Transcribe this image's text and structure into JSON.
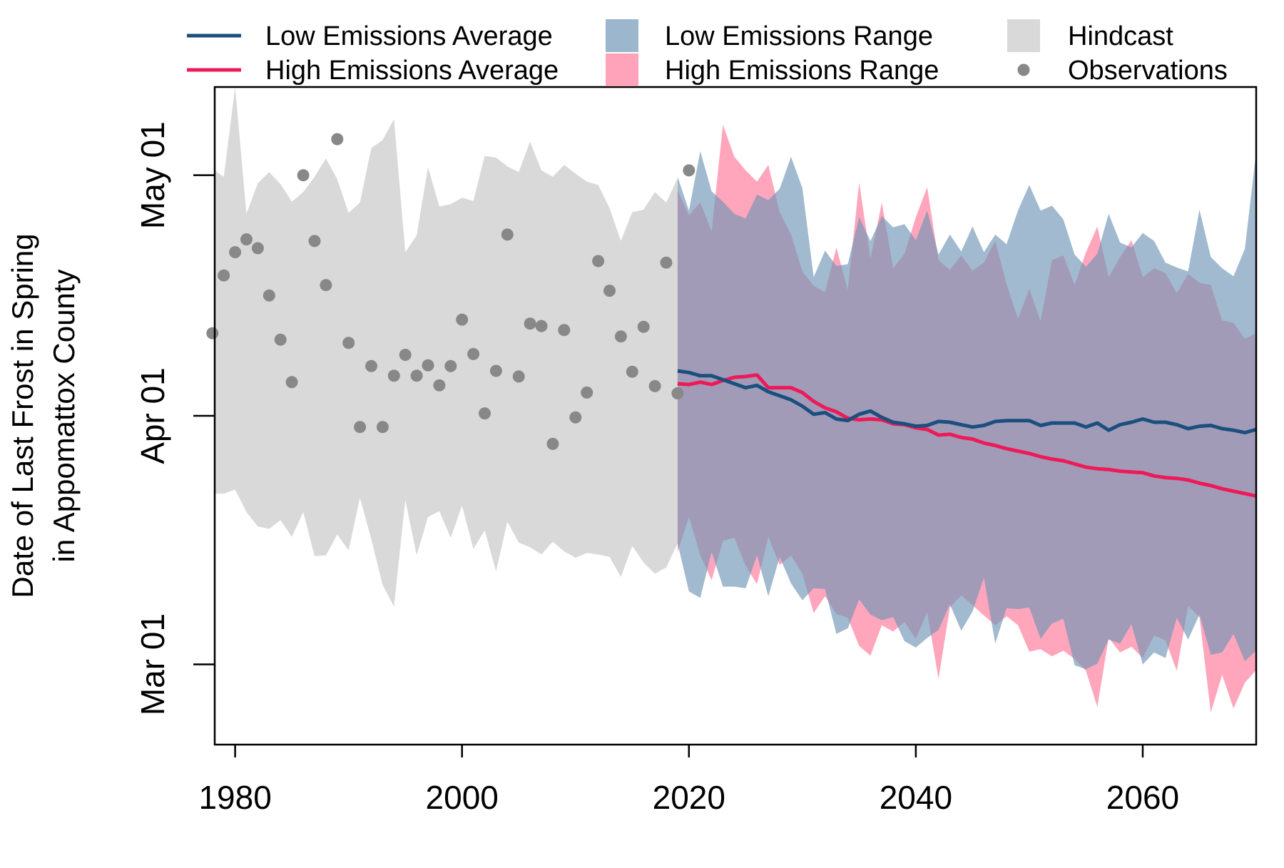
{
  "chart_data": {
    "type": "line",
    "title": "",
    "ylabel_lines": [
      "Date of Last Frost in Spring",
      "in Appomattox County"
    ],
    "xlabel": "",
    "x_ticks": [
      1980,
      2000,
      2020,
      2040,
      2060
    ],
    "xlim": [
      1978.2,
      2070
    ],
    "y_ticks": [
      {
        "doy": 60,
        "label": "Mar 01"
      },
      {
        "doy": 91,
        "label": "Apr 01"
      },
      {
        "doy": 121,
        "label": "May 01"
      }
    ],
    "ylim_doy": [
      50,
      132
    ],
    "grid": false,
    "legend_position": "top",
    "colors": {
      "low_line": "#1a4f7e",
      "high_line": "#ee1a58",
      "low_fill": "#6e95b6",
      "high_fill": "#ff7799",
      "hindcast_fill": "#d9d9d9",
      "observation": "#888888"
    },
    "legend": [
      {
        "label": "Low Emissions Average",
        "kind": "line",
        "color": "#1a4f7e"
      },
      {
        "label": "High Emissions Average",
        "kind": "line",
        "color": "#ee1a58"
      },
      {
        "label": "Low Emissions Range",
        "kind": "box",
        "color": "#9cb6cd"
      },
      {
        "label": "High Emissions Range",
        "kind": "box",
        "color": "#ffa3ba"
      },
      {
        "label": "Hindcast",
        "kind": "box",
        "color": "#d9d9d9"
      },
      {
        "label": "Observations",
        "kind": "point",
        "color": "#888888"
      }
    ],
    "series": [
      {
        "name": "Hindcast",
        "type": "range",
        "x": [
          1978,
          1979,
          1980,
          1981,
          1982,
          1983,
          1984,
          1985,
          1986,
          1987,
          1988,
          1989,
          1990,
          1991,
          1992,
          1993,
          1994,
          1995,
          1996,
          1997,
          1998,
          1999,
          2000,
          2001,
          2002,
          2003,
          2004,
          2005,
          2006,
          2007,
          2008,
          2009,
          2010,
          2011,
          2012,
          2013,
          2014,
          2015,
          2016,
          2017,
          2018,
          2019
        ],
        "low": [
          81.3,
          81.3,
          81.8,
          79,
          77.2,
          76.9,
          78,
          75.9,
          79,
          73.5,
          73.6,
          76.2,
          74.2,
          80.8,
          75.6,
          69.9,
          67.2,
          80.5,
          73.6,
          78.4,
          79.1,
          75.8,
          79.8,
          74.4,
          76.7,
          71.6,
          77.8,
          75.2,
          74.6,
          73.7,
          75.3,
          74.1,
          73.3,
          73.9,
          73.7,
          73.4,
          70.9,
          74.8,
          72.7,
          71.3,
          72.1,
          75.1
        ],
        "high": [
          121.8,
          120.8,
          132.0,
          116.2,
          120.0,
          121.4,
          119.9,
          117.7,
          118.9,
          120.8,
          123.1,
          120.5,
          116.3,
          117.6,
          124.4,
          125.4,
          128.0,
          111.4,
          113.5,
          122.0,
          117.1,
          117.4,
          118.2,
          117.8,
          123.4,
          123.2,
          122.1,
          121.4,
          125.2,
          121.6,
          120.8,
          122.3,
          121.2,
          120.2,
          119.8,
          116.9,
          112.8,
          116.4,
          116.7,
          118.9,
          117.6,
          120.6
        ]
      },
      {
        "name": "Low Emissions Range",
        "type": "range",
        "x": [
          2019,
          2020,
          2021,
          2022,
          2023,
          2024,
          2025,
          2026,
          2027,
          2028,
          2029,
          2030,
          2031,
          2032,
          2033,
          2034,
          2035,
          2036,
          2037,
          2038,
          2039,
          2040,
          2041,
          2042,
          2043,
          2044,
          2045,
          2046,
          2047,
          2048,
          2049,
          2050,
          2051,
          2052,
          2053,
          2054,
          2055,
          2056,
          2057,
          2058,
          2059,
          2060,
          2061,
          2062,
          2063,
          2064,
          2065,
          2066,
          2067,
          2068,
          2069,
          2070
        ],
        "low": [
          75.1,
          69.1,
          68.3,
          74.0,
          69.7,
          69.7,
          69.5,
          73.6,
          68.5,
          73.4,
          70.1,
          68.0,
          69.5,
          69.4,
          63.8,
          64.5,
          68.1,
          66.2,
          65.5,
          65.9,
          62.9,
          62.1,
          63.3,
          64.3,
          67.5,
          64.2,
          66.6,
          70.8,
          62.6,
          67.0,
          66.9,
          67.1,
          63.2,
          65.1,
          65.7,
          59.9,
          59.4,
          60.1,
          63.1,
          62.6,
          65.0,
          60.0,
          61.5,
          60.8,
          65.8,
          63.1,
          66.2,
          61.2,
          61.5,
          63.8,
          60.4,
          61.7
        ],
        "high": [
          120.8,
          116.6,
          124.0,
          119.0,
          117.7,
          116.2,
          115.6,
          118.6,
          117.9,
          119.3,
          123.3,
          119.4,
          108.3,
          111.6,
          109.7,
          109.9,
          115.8,
          112.8,
          115.9,
          114.5,
          114.9,
          112.9,
          116.6,
          111.1,
          113.6,
          111.5,
          114.6,
          111.4,
          113.6,
          112.4,
          116.6,
          119.8,
          116.6,
          117.2,
          115.5,
          111.1,
          109.6,
          111.2,
          116.2,
          112.6,
          112.0,
          113.8,
          112.8,
          110.1,
          109.5,
          109.0,
          116.7,
          110.8,
          109.4,
          108.4,
          111.8,
          123.9
        ]
      },
      {
        "name": "High Emissions Range",
        "type": "range",
        "x": [
          2019,
          2020,
          2021,
          2022,
          2023,
          2024,
          2025,
          2026,
          2027,
          2028,
          2029,
          2030,
          2031,
          2032,
          2033,
          2034,
          2035,
          2036,
          2037,
          2038,
          2039,
          2040,
          2041,
          2042,
          2043,
          2044,
          2045,
          2046,
          2047,
          2048,
          2049,
          2050,
          2051,
          2052,
          2053,
          2054,
          2055,
          2056,
          2057,
          2058,
          2059,
          2060,
          2061,
          2062,
          2063,
          2064,
          2065,
          2066,
          2067,
          2068,
          2069,
          2070
        ],
        "low": [
          74.0,
          78.4,
          73.6,
          70.5,
          75.4,
          75.8,
          72.3,
          70.0,
          75.9,
          72.4,
          73.6,
          71.3,
          66.4,
          68.5,
          66.3,
          65.8,
          62.3,
          61.1,
          64.9,
          64.1,
          65.3,
          63.2,
          66.5,
          58.2,
          67.1,
          68.6,
          67.4,
          66.1,
          64.9,
          66.0,
          64.9,
          61.6,
          61.9,
          61.0,
          61.7,
          60.7,
          59.2,
          54.7,
          63.3,
          61.5,
          62.2,
          60.8,
          63.6,
          63.0,
          59.2,
          67.3,
          65.9,
          54.0,
          58.7,
          54.5,
          57.7,
          59.3
        ],
        "high": [
          119.1,
          116.0,
          117.6,
          114.0,
          127.3,
          123.3,
          121.6,
          120.2,
          122.3,
          116.4,
          113.6,
          109.0,
          107.2,
          106.4,
          112.0,
          106.7,
          120.1,
          110.6,
          117.6,
          109.4,
          111.2,
          115.8,
          119.5,
          110.4,
          109.2,
          111.0,
          109.1,
          110.1,
          112.8,
          107.4,
          103.1,
          106.8,
          102.8,
          110.4,
          111.0,
          107.3,
          111.4,
          114.6,
          108.3,
          110.8,
          112.9,
          108.3,
          109.4,
          108.8,
          106.3,
          108.7,
          107.6,
          107.3,
          102.9,
          102.6,
          100.6,
          101.3
        ]
      },
      {
        "name": "Low Emissions Average",
        "type": "line",
        "x": [
          2019,
          2020,
          2021,
          2022,
          2023,
          2024,
          2025,
          2026,
          2027,
          2028,
          2029,
          2030,
          2031,
          2032,
          2033,
          2034,
          2035,
          2036,
          2037,
          2038,
          2039,
          2040,
          2041,
          2042,
          2043,
          2044,
          2045,
          2046,
          2047,
          2048,
          2049,
          2050,
          2051,
          2052,
          2053,
          2054,
          2055,
          2056,
          2057,
          2058,
          2059,
          2060,
          2061,
          2062,
          2063,
          2064,
          2065,
          2066,
          2067,
          2068,
          2069,
          2070
        ],
        "values": [
          96.6,
          96.4,
          96.0,
          96.0,
          95.5,
          95.0,
          94.5,
          94.8,
          94.0,
          93.5,
          93.0,
          92.2,
          91.2,
          91.4,
          90.6,
          90.4,
          91.2,
          91.6,
          90.8,
          90.2,
          90.0,
          89.7,
          89.8,
          90.3,
          90.2,
          89.9,
          89.6,
          89.8,
          90.3,
          90.4,
          90.4,
          90.4,
          89.8,
          90.1,
          90.1,
          90.1,
          89.6,
          90.1,
          89.2,
          89.9,
          90.2,
          90.6,
          90.2,
          90.2,
          89.9,
          89.4,
          89.7,
          89.8,
          89.4,
          89.2,
          88.9,
          89.3
        ]
      },
      {
        "name": "High Emissions Average",
        "type": "line",
        "x": [
          2019,
          2020,
          2021,
          2022,
          2023,
          2024,
          2025,
          2026,
          2027,
          2028,
          2029,
          2030,
          2031,
          2032,
          2033,
          2034,
          2035,
          2036,
          2037,
          2038,
          2039,
          2040,
          2041,
          2042,
          2043,
          2044,
          2045,
          2046,
          2047,
          2048,
          2049,
          2050,
          2051,
          2052,
          2053,
          2054,
          2055,
          2056,
          2057,
          2058,
          2059,
          2060,
          2061,
          2062,
          2063,
          2064,
          2065,
          2066,
          2067,
          2068,
          2069,
          2070
        ],
        "values": [
          95.0,
          94.9,
          95.2,
          94.9,
          95.4,
          95.8,
          95.9,
          96.1,
          94.5,
          94.5,
          94.5,
          93.9,
          92.8,
          92.0,
          91.5,
          90.7,
          90.5,
          90.6,
          90.5,
          90.0,
          89.9,
          89.5,
          89.3,
          88.6,
          88.7,
          88.3,
          88.1,
          87.6,
          87.3,
          86.9,
          86.6,
          86.3,
          85.9,
          85.6,
          85.4,
          85.0,
          84.6,
          84.4,
          84.3,
          84.1,
          84.0,
          83.9,
          83.5,
          83.3,
          83.2,
          83.0,
          82.6,
          82.3,
          81.9,
          81.6,
          81.3,
          81.0
        ]
      },
      {
        "name": "Observations",
        "type": "scatter",
        "x": [
          1978,
          1979,
          1980,
          1981,
          1982,
          1983,
          1984,
          1985,
          1986,
          1987,
          1988,
          1989,
          1990,
          1991,
          1992,
          1993,
          1994,
          1995,
          1996,
          1997,
          1998,
          1999,
          2000,
          2001,
          2002,
          2003,
          2004,
          2005,
          2006,
          2007,
          2008,
          2009,
          2010,
          2011,
          2012,
          2013,
          2014,
          2015,
          2016,
          2017,
          2018,
          2019,
          2020
        ],
        "values": [
          101.3,
          108.5,
          111.4,
          113.0,
          111.9,
          106.0,
          100.5,
          95.2,
          121.0,
          112.8,
          107.3,
          125.5,
          100.1,
          89.6,
          97.2,
          89.6,
          96.0,
          98.6,
          96.0,
          97.3,
          94.8,
          97.2,
          103.0,
          98.7,
          91.3,
          96.6,
          113.6,
          95.9,
          102.5,
          102.2,
          87.5,
          101.7,
          90.8,
          93.9,
          110.3,
          106.6,
          100.9,
          96.5,
          102.1,
          94.7,
          110.1,
          93.8,
          121.6
        ]
      }
    ]
  }
}
